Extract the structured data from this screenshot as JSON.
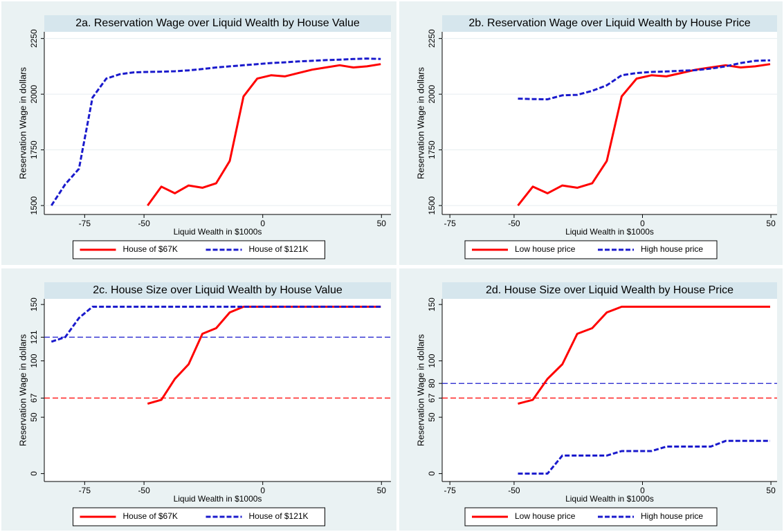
{
  "chart_data": [
    {
      "type": "line",
      "title": "2a. Reservation Wage over Liquid Wealth by House Value",
      "xlabel": "Liquid Wealth in $1000s",
      "ylabel": "Reservation Wage in dollars",
      "xlim": [
        -92,
        54
      ],
      "xticks": [
        -75,
        -50,
        0,
        50
      ],
      "ylim": [
        1460,
        2280
      ],
      "yticks": [
        1500,
        1750,
        2000,
        2250
      ],
      "grid": true,
      "legend": "bottom",
      "series": [
        {
          "name": "House of $67K",
          "color": "#ff0000",
          "dash": false,
          "x": [
            -48.5,
            -42.7,
            -37,
            -31.2,
            -25.4,
            -19.6,
            -13.9,
            -8.1,
            -2.3,
            3.5,
            9.3,
            15,
            20.8,
            26.6,
            32.4,
            38.2,
            43.9,
            49.7
          ],
          "values": [
            1500,
            1585,
            1555,
            1590,
            1580,
            1600,
            1700,
            1990,
            2070,
            2085,
            2080,
            2095,
            2110,
            2120,
            2130,
            2120,
            2125,
            2135
          ]
        },
        {
          "name": "House of $121K",
          "color": "#1a1acc",
          "dash": true,
          "x": [
            -89,
            -83.2,
            -77.4,
            -71.7,
            -65.9,
            -60.1,
            -54.3,
            -48.5,
            -42.8,
            -37,
            -31.2,
            -25.4,
            -19.6,
            -13.9,
            -8.1,
            -2.3,
            3.5,
            9.3,
            15,
            20.8,
            26.6,
            32.4,
            38.2,
            43.9,
            49.7
          ],
          "values": [
            1500,
            1595,
            1665,
            1985,
            2070,
            2090,
            2098,
            2100,
            2101,
            2103,
            2107,
            2113,
            2120,
            2125,
            2130,
            2135,
            2140,
            2143,
            2147,
            2150,
            2153,
            2155,
            2158,
            2160,
            2158
          ]
        }
      ]
    },
    {
      "type": "line",
      "title": "2b. Reservation Wage over Liquid Wealth by House Price",
      "xlabel": "Liquid Wealth in $1000s",
      "ylabel": "Reservation Wage in dollars",
      "xlim": [
        -78,
        52.4
      ],
      "xticks": [
        -75,
        -50,
        0,
        50
      ],
      "ylim": [
        1460,
        2280
      ],
      "yticks": [
        1500,
        1750,
        2000,
        2250
      ],
      "grid": true,
      "legend": "bottom",
      "series": [
        {
          "name": "Low house price",
          "color": "#ff0000",
          "dash": false,
          "x": [
            -48.5,
            -42.7,
            -37,
            -31.2,
            -25.4,
            -19.6,
            -13.9,
            -8.1,
            -2.3,
            3.5,
            9.3,
            15,
            20.8,
            26.6,
            32.4,
            38.2,
            43.9,
            49.7
          ],
          "values": [
            1500,
            1585,
            1555,
            1590,
            1580,
            1600,
            1700,
            1990,
            2070,
            2085,
            2080,
            2095,
            2110,
            2120,
            2130,
            2120,
            2125,
            2135
          ]
        },
        {
          "name": "High house price",
          "color": "#1a1acc",
          "dash": true,
          "x": [
            -48.5,
            -42.7,
            -37,
            -31.2,
            -25.4,
            -19.6,
            -13.9,
            -8.1,
            -2.3,
            3.5,
            9.3,
            15,
            20.8,
            26.6,
            32.4,
            38.2,
            43.9,
            49.7
          ],
          "values": [
            1980,
            1978,
            1977,
            1995,
            1997,
            2015,
            2040,
            2085,
            2095,
            2100,
            2102,
            2105,
            2108,
            2115,
            2125,
            2140,
            2150,
            2152
          ]
        }
      ]
    },
    {
      "type": "line",
      "title": "2c. House Size over Liquid Wealth by House Value",
      "xlabel": "Liquid Wealth in $1000s",
      "ylabel": "Reservation Wage in dollars",
      "xlim": [
        -92,
        54
      ],
      "xticks": [
        -75,
        -50,
        0,
        50
      ],
      "ylim": [
        -7,
        155
      ],
      "yticks": [
        0,
        50,
        67,
        100,
        121,
        150
      ],
      "grid": false,
      "legend": "bottom",
      "reference_lines": [
        {
          "value": 67,
          "color": "#ff0000"
        },
        {
          "value": 121,
          "color": "#1a1acc"
        }
      ],
      "series": [
        {
          "name": "House of $67K",
          "color": "#ff0000",
          "dash": false,
          "x": [
            -48.5,
            -42.7,
            -37,
            -31.2,
            -25.4,
            -19.6,
            -13.9,
            -8.1,
            -2.3,
            3.5,
            9.3,
            15,
            20.8,
            26.6,
            32.4,
            38.2,
            43.9,
            49.7
          ],
          "values": [
            62,
            65.5,
            84,
            97,
            124,
            129,
            143,
            148,
            148,
            148,
            148,
            148,
            148,
            148,
            148,
            148,
            148,
            148
          ]
        },
        {
          "name": "House of $121K",
          "color": "#1a1acc",
          "dash": true,
          "x": [
            -89,
            -83.2,
            -77.4,
            -71.7,
            -65.9,
            -60.1,
            -54.3,
            -48.5,
            -42.8,
            -37,
            -31.2,
            -25.4,
            -19.6,
            -13.9,
            -8.1,
            -2.3,
            3.5,
            9.3,
            15,
            20.8,
            26.6,
            32.4,
            38.2,
            43.9,
            49.7
          ],
          "values": [
            117,
            121,
            138,
            148,
            148,
            148,
            148,
            148,
            148,
            148,
            148,
            148,
            148,
            148,
            148,
            148,
            148,
            148,
            148,
            148,
            148,
            148,
            148,
            148,
            148
          ]
        }
      ]
    },
    {
      "type": "line",
      "title": "2d. House Size over Liquid Wealth by House Price",
      "xlabel": "Liquid Wealth in $1000s",
      "ylabel": "Reservation Wage in dollars",
      "xlim": [
        -78,
        52.4
      ],
      "xticks": [
        -75,
        -50,
        0,
        50
      ],
      "ylim": [
        -7,
        155
      ],
      "yticks": [
        0,
        50,
        67,
        80,
        100,
        150
      ],
      "grid": false,
      "legend": "bottom",
      "reference_lines": [
        {
          "value": 67,
          "color": "#ff0000"
        },
        {
          "value": 80,
          "color": "#1a1acc"
        }
      ],
      "series": [
        {
          "name": "Low house price",
          "color": "#ff0000",
          "dash": false,
          "x": [
            -48.5,
            -42.7,
            -37,
            -31.2,
            -25.4,
            -19.6,
            -13.9,
            -8.1,
            -2.3,
            3.5,
            9.3,
            15,
            20.8,
            26.6,
            32.4,
            38.2,
            43.9,
            49.7
          ],
          "values": [
            62,
            65.5,
            84,
            97,
            124,
            129,
            143,
            148,
            148,
            148,
            148,
            148,
            148,
            148,
            148,
            148,
            148,
            148
          ]
        },
        {
          "name": "High house price",
          "color": "#1a1acc",
          "dash": true,
          "x": [
            -48.5,
            -42.7,
            -37,
            -31.2,
            -25.4,
            -19.6,
            -13.9,
            -8.1,
            -2.3,
            3.5,
            9.3,
            15,
            20.8,
            26.6,
            32.4,
            38.2,
            43.9,
            49.7
          ],
          "values": [
            0,
            0,
            0,
            16,
            16,
            16,
            16,
            20,
            20,
            20,
            24,
            24,
            24,
            24,
            29,
            29,
            29,
            29
          ]
        }
      ]
    }
  ]
}
